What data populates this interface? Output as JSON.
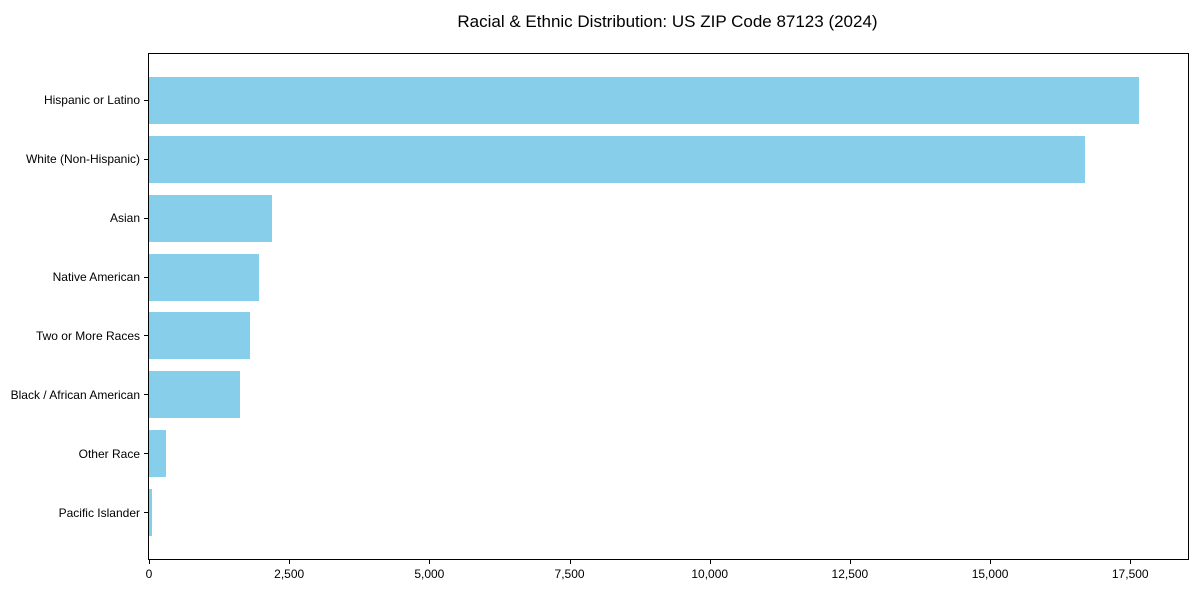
{
  "chart_data": {
    "type": "bar",
    "orientation": "horizontal",
    "title": "Racial & Ethnic Distribution: US ZIP Code 87123 (2024)",
    "categories": [
      "Hispanic or Latino",
      "White (Non-Hispanic)",
      "Asian",
      "Native American",
      "Two or More Races",
      "Black / African American",
      "Other Race",
      "Pacific Islander"
    ],
    "values": [
      17650,
      16700,
      2190,
      1970,
      1800,
      1630,
      300,
      50
    ],
    "xlabel": "",
    "ylabel": "",
    "xlim": [
      0,
      18530
    ],
    "x_ticks": [
      0,
      2500,
      5000,
      7500,
      10000,
      12500,
      15000,
      17500
    ],
    "x_tick_labels": [
      "0",
      "2,500",
      "5,000",
      "7,500",
      "10,000",
      "12,500",
      "15,000",
      "17,500"
    ],
    "grid": false,
    "legend": null,
    "bar_color": "#87CEEB",
    "axis_color": "#000000",
    "background_color": "#FFFFFF",
    "text_color": "#000000"
  }
}
